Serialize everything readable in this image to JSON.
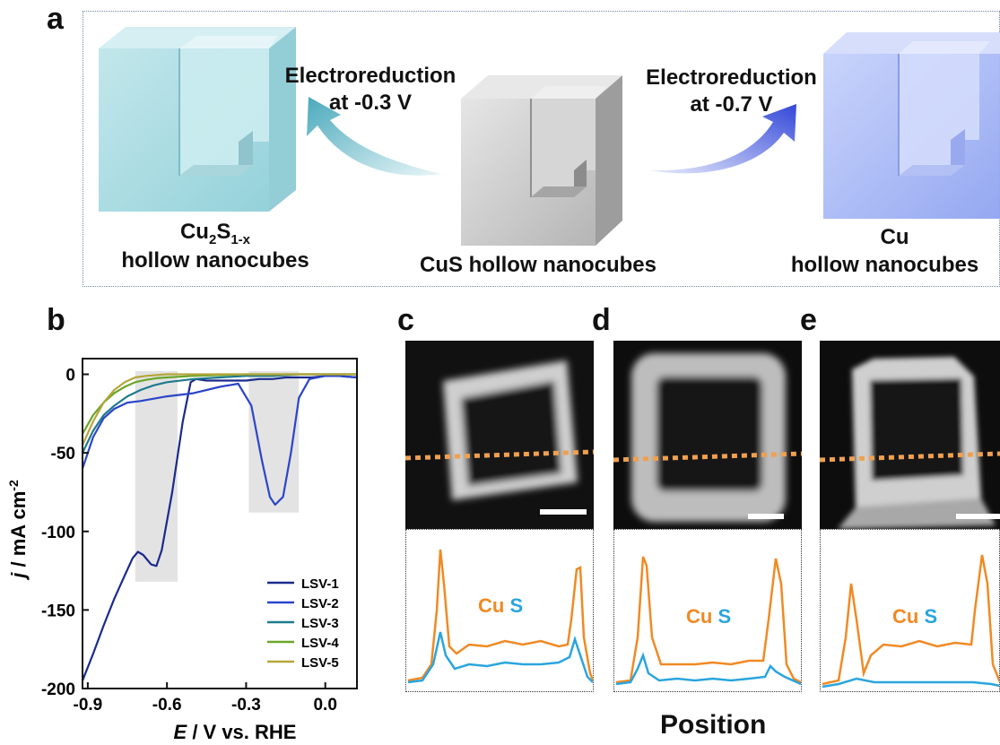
{
  "panel_a": {
    "label": "a",
    "left_cube_caption_lines": [
      "Cu",
      "2",
      "S",
      "1-x",
      "hollow nanocubes"
    ],
    "center_cube_caption": "CuS hollow nanocubes",
    "right_cube_caption_lines": [
      "Cu",
      "hollow nanocubes"
    ],
    "left_arrow_text_lines": [
      "Electroreduction",
      "at -0.3 V"
    ],
    "right_arrow_text_lines": [
      "Electroreduction",
      "at -0.7 V"
    ],
    "colors": {
      "left_cube": "#a9dbe2",
      "center_cube": "#c7c7c7",
      "right_cube": "#a8b9f4",
      "left_arrow": "#5fb7c8",
      "right_arrow": "#4a5de0"
    }
  },
  "panel_b": {
    "label": "b"
  },
  "panel_c": {
    "label": "c"
  },
  "panel_d": {
    "label": "d"
  },
  "panel_e": {
    "label": "e"
  },
  "profile_labels": {
    "cu": "Cu",
    "s": "S"
  },
  "position_label": "Position",
  "colors": {
    "cu": "#f08a24",
    "s": "#2aa5de",
    "dashed_line": "#f0a050"
  },
  "chart_data": {
    "type": "line",
    "xlabel_italic": "E",
    "xlabel_rest": " / V vs. RHE",
    "ylabel_italic": "j",
    "ylabel_rest": " / mA cm",
    "ylabel_sup": "-2",
    "xlim": [
      -0.92,
      0.12
    ],
    "ylim": [
      -200,
      10
    ],
    "xticks": [
      -0.9,
      -0.6,
      -0.3,
      0.0
    ],
    "xtick_labels": [
      "-0.9",
      "-0.6",
      "-0.3",
      "0.0"
    ],
    "yticks": [
      0,
      -50,
      -100,
      -150,
      -200
    ],
    "ytick_labels": [
      "0",
      "-50",
      "-100",
      "-150",
      "-200"
    ],
    "shaded_ranges": [
      {
        "x": [
          -0.72,
          -0.56
        ],
        "y": [
          -132,
          2
        ]
      },
      {
        "x": [
          -0.29,
          -0.1
        ],
        "y": [
          -88,
          2
        ]
      }
    ],
    "legend_position": "bottom-right",
    "series": [
      {
        "name": "LSV-1",
        "color": "#1a2a8c",
        "x": [
          -0.92,
          -0.88,
          -0.84,
          -0.8,
          -0.76,
          -0.73,
          -0.71,
          -0.69,
          -0.66,
          -0.64,
          -0.62,
          -0.58,
          -0.54,
          -0.51,
          -0.49,
          -0.45,
          -0.4,
          -0.35,
          -0.3,
          -0.25,
          -0.2,
          -0.15,
          -0.1,
          -0.05,
          0.0,
          0.05,
          0.12
        ],
        "y": [
          -195,
          -178,
          -160,
          -143,
          -128,
          -117,
          -113,
          -115,
          -121,
          -122,
          -112,
          -75,
          -30,
          -5,
          -3,
          -4,
          -4,
          -4,
          -4,
          -3,
          -3,
          -2,
          -2,
          -2,
          -1,
          -1,
          -2
        ]
      },
      {
        "name": "LSV-2",
        "color": "#2b45c8",
        "x": [
          -0.92,
          -0.88,
          -0.84,
          -0.8,
          -0.75,
          -0.7,
          -0.6,
          -0.5,
          -0.4,
          -0.33,
          -0.28,
          -0.24,
          -0.21,
          -0.19,
          -0.16,
          -0.13,
          -0.1,
          -0.06,
          0.0,
          0.05,
          0.12
        ],
        "y": [
          -60,
          -40,
          -28,
          -22,
          -18,
          -17,
          -14,
          -12,
          -8,
          -6,
          -20,
          -55,
          -78,
          -83,
          -78,
          -50,
          -15,
          -3,
          -1,
          -1,
          -2
        ]
      },
      {
        "name": "LSV-3",
        "color": "#1f7a8c",
        "x": [
          -0.92,
          -0.88,
          -0.84,
          -0.8,
          -0.75,
          -0.7,
          -0.65,
          -0.6,
          -0.5,
          -0.4,
          -0.3,
          -0.2,
          -0.1,
          0.0,
          0.12
        ],
        "y": [
          -50,
          -36,
          -26,
          -20,
          -14,
          -10,
          -7,
          -5,
          -3,
          -2,
          -1,
          -1,
          0,
          0,
          0
        ]
      },
      {
        "name": "LSV-4",
        "color": "#6aa62a",
        "x": [
          -0.92,
          -0.88,
          -0.84,
          -0.8,
          -0.76,
          -0.72,
          -0.68,
          -0.64,
          -0.6,
          -0.5,
          -0.4,
          -0.3,
          -0.2,
          -0.1,
          0.0,
          0.12
        ],
        "y": [
          -38,
          -26,
          -18,
          -12,
          -8,
          -5,
          -3.5,
          -2.5,
          -2,
          -1,
          -0.5,
          0,
          0,
          0,
          0,
          0
        ]
      },
      {
        "name": "LSV-5",
        "color": "#b5a63a",
        "x": [
          -0.92,
          -0.88,
          -0.84,
          -0.8,
          -0.76,
          -0.72,
          -0.68,
          -0.64,
          -0.6,
          -0.5,
          -0.4,
          -0.3,
          -0.2,
          -0.1,
          0.0,
          0.12
        ],
        "y": [
          -45,
          -30,
          -18,
          -10,
          -5,
          -2,
          -1,
          -0.5,
          0,
          0,
          0,
          0,
          0,
          0,
          0,
          0
        ]
      }
    ]
  }
}
